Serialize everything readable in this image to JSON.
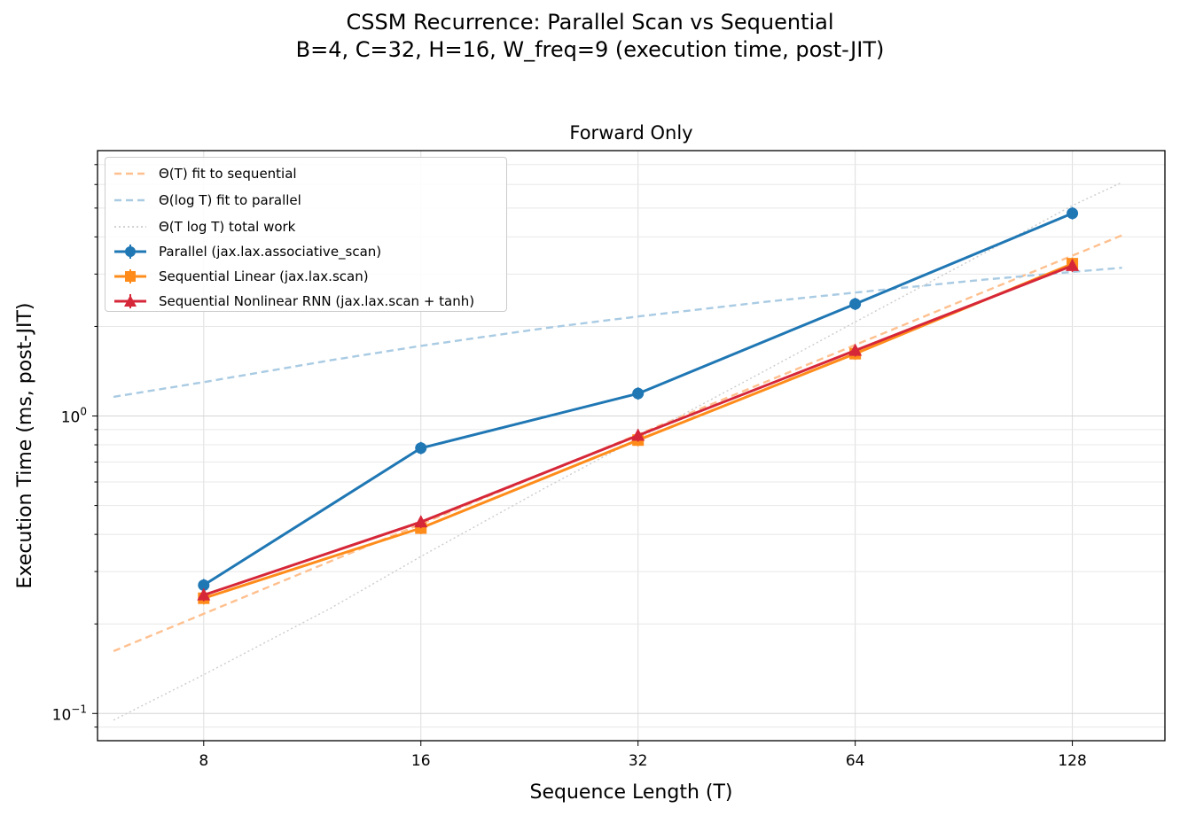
{
  "suptitle_line1": "CSSM Recurrence: Parallel Scan vs Sequential",
  "suptitle_line2": "B=4, C=32, H=16, W_freq=9  (execution time, post-JIT)",
  "chart_data": {
    "type": "line",
    "title": "Forward Only",
    "xlabel": "Sequence Length (T)",
    "ylabel": "Execution Time (ms, post-JIT)",
    "xscale": "log2",
    "yscale": "log10",
    "xlim": [
      5.7,
      172
    ],
    "ylim": [
      0.081,
      7.8
    ],
    "xticks": [
      8,
      16,
      32,
      64,
      128
    ],
    "xtick_labels": [
      "8",
      "16",
      "32",
      "64",
      "128"
    ],
    "yticks": [
      0.1,
      1.0
    ],
    "ytick_base": "10",
    "ytick_exponents": [
      "−1",
      "0"
    ],
    "grid": true,
    "legend_position": "upper-left",
    "series": [
      {
        "name": "Parallel (jax.lax.associative_scan)",
        "color": "#1f77b4",
        "marker": "circle",
        "x": [
          8,
          16,
          32,
          64,
          128
        ],
        "y": [
          0.27,
          0.78,
          1.19,
          2.38,
          4.8
        ]
      },
      {
        "name": "Sequential Linear (jax.lax.scan)",
        "color": "#ff8c1a",
        "marker": "square",
        "x": [
          8,
          16,
          32,
          64,
          128
        ],
        "y": [
          0.244,
          0.42,
          0.83,
          1.62,
          3.25
        ]
      },
      {
        "name": "Sequential Nonlinear RNN (jax.lax.scan + tanh)",
        "color": "#d62739",
        "marker": "triangle",
        "x": [
          8,
          16,
          32,
          64,
          128
        ],
        "y": [
          0.25,
          0.44,
          0.86,
          1.66,
          3.2
        ]
      }
    ],
    "fits": [
      {
        "name": "Θ(T) fit to sequential",
        "color": "#ffc08f",
        "style": "dashed",
        "x": [
          6,
          12,
          24,
          48,
          96,
          150
        ],
        "y": [
          0.162,
          0.325,
          0.65,
          1.3,
          2.6,
          4.05
        ]
      },
      {
        "name": "Θ(log T) fit to parallel",
        "color": "#a9cbe3",
        "style": "dashed",
        "x": [
          6,
          8,
          12,
          16,
          24,
          32,
          48,
          64,
          96,
          128,
          150
        ],
        "y": [
          1.16,
          1.3,
          1.54,
          1.72,
          1.98,
          2.16,
          2.42,
          2.6,
          2.87,
          3.05,
          3.15
        ]
      },
      {
        "name": "Θ(T log T) total work",
        "color": "#cccccc",
        "style": "dotted",
        "x": [
          6,
          8,
          12,
          16,
          24,
          32,
          48,
          64,
          96,
          128,
          150
        ],
        "y": [
          0.095,
          0.135,
          0.226,
          0.337,
          0.58,
          0.84,
          1.42,
          2.07,
          3.5,
          5.1,
          6.1
        ]
      }
    ]
  }
}
